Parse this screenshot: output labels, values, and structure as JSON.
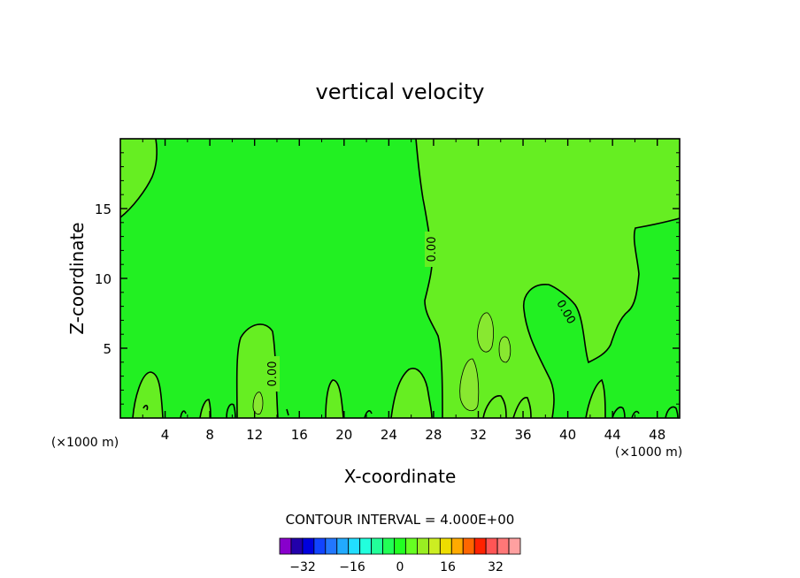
{
  "chart_data": {
    "type": "contour",
    "title": "vertical velocity",
    "xlabel": "X-coordinate",
    "ylabel": "Z-coordinate",
    "x_unit_left": "(×1000 m)",
    "x_unit_right": "(×1000 m)",
    "xlim": [
      0,
      50
    ],
    "ylim": [
      0,
      20
    ],
    "xticks": [
      4,
      8,
      12,
      16,
      20,
      24,
      28,
      32,
      36,
      40,
      44,
      48
    ],
    "yticks": [
      5,
      10,
      15
    ],
    "contour_interval_text": "CONTOUR INTERVAL = 4.000E+00",
    "contour_labels": [
      "0.00",
      "0.00",
      "0.00"
    ],
    "colors": {
      "background_field": "#22f022",
      "positive_field": "#66ee22",
      "stronger_positive_field": "#88e830"
    },
    "colorbar": {
      "ticks": [
        "−32",
        "−16",
        "0",
        "16",
        "32"
      ],
      "colors": [
        "#8800cc",
        "#2200aa",
        "#0000dd",
        "#1144ff",
        "#2277ff",
        "#22aaff",
        "#22ddff",
        "#22ffdd",
        "#22ff99",
        "#22ff55",
        "#22ff22",
        "#66ff22",
        "#99ee22",
        "#ccee22",
        "#eedd00",
        "#ffaa00",
        "#ff6600",
        "#ff2200",
        "#ff5555",
        "#ff7777",
        "#ffa0a0"
      ]
    }
  }
}
